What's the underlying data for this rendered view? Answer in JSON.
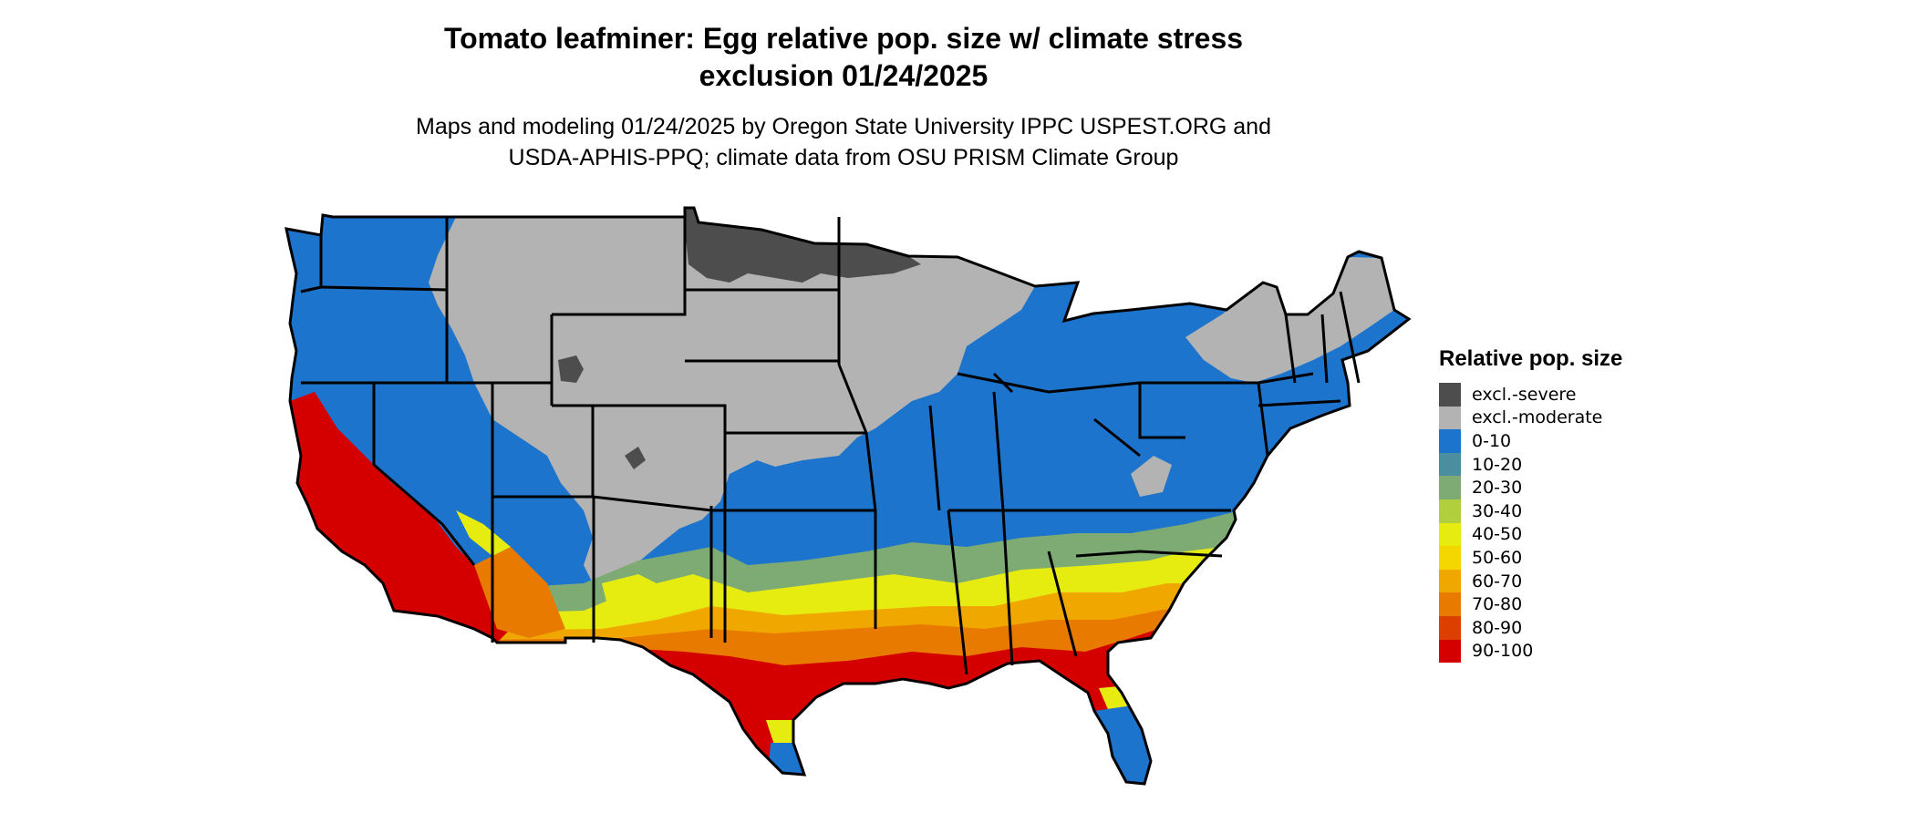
{
  "title_line1": "Tomato leafminer: Egg relative pop. size w/ climate stress",
  "title_line2": "exclusion 01/24/2025",
  "subtitle_line1": "Maps and modeling 01/24/2025 by Oregon State University IPPC USPEST.ORG and",
  "subtitle_line2": "USDA-APHIS-PPQ; climate data from OSU PRISM Climate Group",
  "legend": {
    "title": "Relative pop. size",
    "items": [
      {
        "label": "excl.-severe",
        "color": "#4d4d4d"
      },
      {
        "label": "excl.-moderate",
        "color": "#b3b3b3"
      },
      {
        "label": "0-10",
        "color": "#1c74cc"
      },
      {
        "label": "10-20",
        "color": "#4a8ea0"
      },
      {
        "label": "20-30",
        "color": "#7dab73"
      },
      {
        "label": "30-40",
        "color": "#b1cf3c"
      },
      {
        "label": "40-50",
        "color": "#e6ec10"
      },
      {
        "label": "50-60",
        "color": "#f4d600"
      },
      {
        "label": "60-70",
        "color": "#f0a800"
      },
      {
        "label": "70-80",
        "color": "#e87a00"
      },
      {
        "label": "80-90",
        "color": "#dc3f00"
      },
      {
        "label": "90-100",
        "color": "#d40000"
      }
    ]
  }
}
